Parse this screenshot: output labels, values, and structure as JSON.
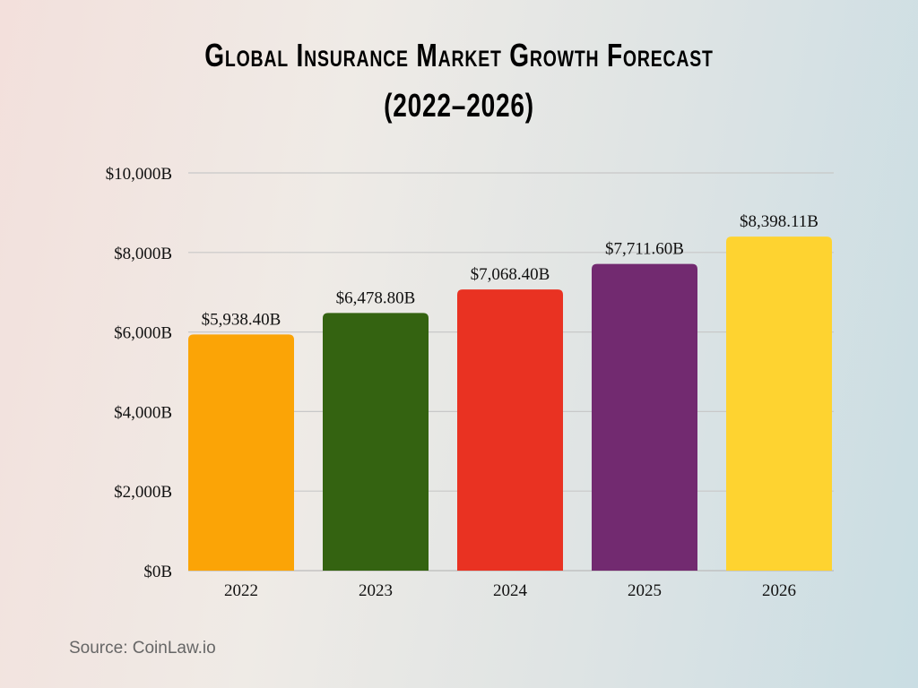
{
  "chart_data": {
    "type": "bar",
    "title": "Global Insurance Market Growth Forecast",
    "subtitle": "(2022–2026)",
    "categories": [
      "2022",
      "2023",
      "2024",
      "2025",
      "2026"
    ],
    "values": [
      5938.4,
      6478.8,
      7068.4,
      7711.6,
      8398.11
    ],
    "data_labels": [
      "$5,938.40B",
      "$6,478.80B",
      "$7,068.40B",
      "$7,711.60B",
      "$8,398.11B"
    ],
    "colors": [
      "#fba406",
      "#346311",
      "#e93222",
      "#722a70",
      "#fed330"
    ],
    "ylim": [
      0,
      10000
    ],
    "yticks": [
      0,
      2000,
      4000,
      6000,
      8000,
      10000
    ],
    "ytick_labels": [
      "$0B",
      "$2,000B",
      "$4,000B",
      "$6,000B",
      "$8,000B",
      "$10,000B"
    ],
    "grid": true,
    "xlabel": "",
    "ylabel": ""
  },
  "source": "Source: CoinLaw.io"
}
